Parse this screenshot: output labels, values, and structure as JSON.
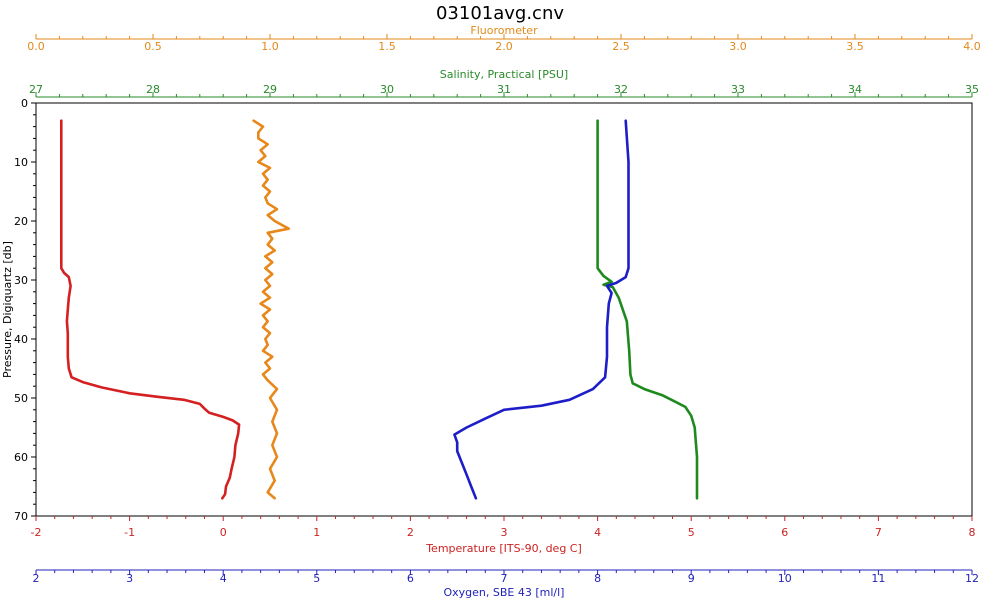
{
  "chart_data": {
    "type": "line",
    "title": "03101avg.cnv",
    "grid": false,
    "legend": "none",
    "y_axis": {
      "label": "Pressure, Digiquartz [db]",
      "range": [
        0,
        70
      ],
      "inverted": true,
      "ticks": [
        0,
        10,
        20,
        30,
        40,
        50,
        60,
        70
      ],
      "color": "#000000"
    },
    "x_axes": [
      {
        "id": "fluorometer",
        "label": "Fluorometer",
        "position": "top",
        "range": [
          0.0,
          4.0
        ],
        "ticks": [
          "0.0",
          "0.5",
          "1.0",
          "1.5",
          "2.0",
          "2.5",
          "3.0",
          "3.5",
          "4.0"
        ],
        "color": "#e08a1a"
      },
      {
        "id": "salinity",
        "label": "Salinity, Practical [PSU]",
        "position": "top",
        "range": [
          27,
          35
        ],
        "ticks": [
          "27",
          "28",
          "29",
          "30",
          "31",
          "32",
          "33",
          "34",
          "35"
        ],
        "color": "#2a8a2a"
      },
      {
        "id": "temperature",
        "label": "Temperature [ITS-90, deg C]",
        "position": "bottom",
        "range": [
          -2,
          8
        ],
        "ticks": [
          "-2",
          "-1",
          "0",
          "1",
          "2",
          "3",
          "4",
          "5",
          "6",
          "7",
          "8"
        ],
        "color": "#cc2222"
      },
      {
        "id": "oxygen",
        "label": "Oxygen, SBE 43 [ml/l]",
        "position": "bottom",
        "range": [
          2,
          12
        ],
        "ticks": [
          "2",
          "3",
          "4",
          "5",
          "6",
          "7",
          "8",
          "9",
          "10",
          "11",
          "12"
        ],
        "color": "#2222bb"
      }
    ],
    "series": [
      {
        "axis": "temperature",
        "color": "#d42020",
        "points": [
          [
            -1.73,
            3
          ],
          [
            -1.73,
            10
          ],
          [
            -1.73,
            20
          ],
          [
            -1.73,
            28
          ],
          [
            -1.7,
            28.8
          ],
          [
            -1.65,
            29.5
          ],
          [
            -1.63,
            31
          ],
          [
            -1.65,
            33
          ],
          [
            -1.66,
            35
          ],
          [
            -1.67,
            37
          ],
          [
            -1.66,
            39
          ],
          [
            -1.66,
            41
          ],
          [
            -1.66,
            43
          ],
          [
            -1.65,
            45
          ],
          [
            -1.62,
            46.5
          ],
          [
            -1.5,
            47.3
          ],
          [
            -1.3,
            48.2
          ],
          [
            -1.0,
            49.2
          ],
          [
            -0.7,
            49.8
          ],
          [
            -0.42,
            50.3
          ],
          [
            -0.25,
            51.0
          ],
          [
            -0.2,
            51.8
          ],
          [
            -0.15,
            52.5
          ],
          [
            0.0,
            53.2
          ],
          [
            0.1,
            53.8
          ],
          [
            0.17,
            54.5
          ],
          [
            0.16,
            56
          ],
          [
            0.13,
            58
          ],
          [
            0.12,
            60
          ],
          [
            0.09,
            62
          ],
          [
            0.07,
            63.5
          ],
          [
            0.03,
            65
          ],
          [
            0.02,
            66.3
          ],
          [
            -0.01,
            67
          ]
        ]
      },
      {
        "axis": "fluorometer",
        "color": "#e8871a",
        "points": [
          [
            0.93,
            3
          ],
          [
            0.97,
            4
          ],
          [
            0.95,
            5
          ],
          [
            0.95,
            6
          ],
          [
            0.99,
            7
          ],
          [
            0.96,
            8
          ],
          [
            0.98,
            9
          ],
          [
            0.95,
            10
          ],
          [
            1.0,
            11
          ],
          [
            0.97,
            12
          ],
          [
            0.99,
            13
          ],
          [
            0.97,
            14
          ],
          [
            1.0,
            15
          ],
          [
            0.98,
            16
          ],
          [
            0.99,
            17
          ],
          [
            1.03,
            18
          ],
          [
            0.99,
            19
          ],
          [
            1.02,
            20
          ],
          [
            1.08,
            21.3
          ],
          [
            0.99,
            22
          ],
          [
            1.01,
            23
          ],
          [
            0.99,
            24
          ],
          [
            1.02,
            25
          ],
          [
            0.98,
            26
          ],
          [
            1.01,
            27
          ],
          [
            0.98,
            28
          ],
          [
            1.01,
            29
          ],
          [
            0.98,
            30
          ],
          [
            1.0,
            31
          ],
          [
            0.97,
            32
          ],
          [
            1.0,
            33
          ],
          [
            0.96,
            34
          ],
          [
            1.0,
            35
          ],
          [
            0.97,
            36
          ],
          [
            0.99,
            37
          ],
          [
            0.97,
            38
          ],
          [
            1.0,
            39
          ],
          [
            0.98,
            40
          ],
          [
            0.99,
            41
          ],
          [
            0.97,
            42
          ],
          [
            1.01,
            43
          ],
          [
            0.98,
            44
          ],
          [
            1.0,
            45
          ],
          [
            0.97,
            46
          ],
          [
            0.99,
            47
          ],
          [
            1.03,
            48.5
          ],
          [
            1.0,
            50
          ],
          [
            1.03,
            52
          ],
          [
            1.01,
            54
          ],
          [
            1.03,
            56
          ],
          [
            1.01,
            58
          ],
          [
            1.03,
            60
          ],
          [
            1.0,
            62
          ],
          [
            1.02,
            64
          ],
          [
            0.99,
            66
          ],
          [
            1.02,
            67
          ]
        ]
      },
      {
        "axis": "salinity",
        "color": "#1e8a1e",
        "points": [
          [
            31.8,
            3
          ],
          [
            31.8,
            10
          ],
          [
            31.8,
            20
          ],
          [
            31.8,
            28
          ],
          [
            31.85,
            29.3
          ],
          [
            31.92,
            30.3
          ],
          [
            31.85,
            30.8
          ],
          [
            31.93,
            31.2
          ],
          [
            31.98,
            33
          ],
          [
            32.05,
            37
          ],
          [
            32.07,
            42
          ],
          [
            32.08,
            46
          ],
          [
            32.1,
            47.5
          ],
          [
            32.2,
            48.5
          ],
          [
            32.35,
            49.5
          ],
          [
            32.45,
            50.5
          ],
          [
            32.55,
            51.5
          ],
          [
            32.6,
            53
          ],
          [
            32.63,
            55
          ],
          [
            32.65,
            60
          ],
          [
            32.65,
            67
          ]
        ]
      },
      {
        "axis": "oxygen",
        "color": "#1e1ec8",
        "points": [
          [
            8.3,
            3
          ],
          [
            8.33,
            10
          ],
          [
            8.33,
            20
          ],
          [
            8.33,
            28
          ],
          [
            8.3,
            29.5
          ],
          [
            8.2,
            30.5
          ],
          [
            8.1,
            31
          ],
          [
            8.15,
            32.2
          ],
          [
            8.12,
            34
          ],
          [
            8.1,
            38
          ],
          [
            8.1,
            43
          ],
          [
            8.08,
            46.5
          ],
          [
            7.95,
            48.5
          ],
          [
            7.7,
            50.3
          ],
          [
            7.4,
            51.3
          ],
          [
            7.0,
            52
          ],
          [
            6.8,
            53.5
          ],
          [
            6.6,
            55
          ],
          [
            6.47,
            56.2
          ],
          [
            6.5,
            57.5
          ],
          [
            6.5,
            59
          ],
          [
            6.55,
            61
          ],
          [
            6.6,
            63
          ],
          [
            6.65,
            65
          ],
          [
            6.7,
            67
          ]
        ]
      }
    ]
  }
}
